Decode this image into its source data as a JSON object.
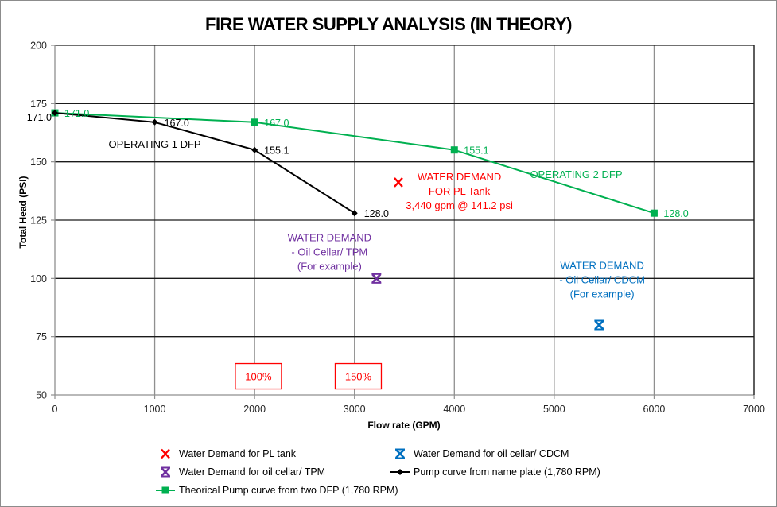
{
  "chart_data": {
    "type": "scatter",
    "title": "FIRE WATER SUPPLY ANALYSIS (IN THEORY)",
    "xlabel": "Flow rate (GPM)",
    "ylabel": "Total Head (PSI)",
    "xlim": [
      0,
      7000
    ],
    "ylim": [
      50,
      200
    ],
    "xticks": [
      0,
      1000,
      2000,
      3000,
      4000,
      5000,
      6000,
      7000
    ],
    "yticks": [
      50,
      75,
      100,
      125,
      150,
      175,
      200
    ],
    "xtick_labels": [
      "0",
      "1000",
      "2000",
      "3000",
      "4000",
      "5000",
      "6000",
      "7000"
    ],
    "ytick_labels": [
      "50",
      "75",
      "100",
      "125",
      "150",
      "175",
      "200"
    ],
    "grid": true,
    "legend_position": "bottom",
    "series": [
      {
        "name": "Water Demand for PL tank",
        "kind": "marker",
        "marker": "x",
        "color": "#ff0000",
        "x": [
          3440
        ],
        "y": [
          141.2
        ]
      },
      {
        "name": "Water Demand for oil cellar/ CDCM",
        "kind": "marker",
        "marker": "star",
        "color": "#0070c0",
        "x": [
          5450
        ],
        "y": [
          80
        ]
      },
      {
        "name": "Water Demand for oil cellar/ TPM",
        "kind": "marker",
        "marker": "star",
        "color": "#7030a0",
        "x": [
          3220
        ],
        "y": [
          100
        ]
      },
      {
        "name": "Pump curve from name plate (1,780 RPM)",
        "kind": "line",
        "marker": "diamond",
        "color": "#000000",
        "x": [
          0,
          1000,
          2000,
          3000
        ],
        "y": [
          171.0,
          167.0,
          155.1,
          128.0
        ],
        "labels": [
          "171.0",
          "167.0",
          "155.1",
          "128.0"
        ]
      },
      {
        "name": "Theorical Pump curve from two DFP (1,780 RPM)",
        "kind": "line",
        "marker": "square",
        "color": "#00b050",
        "x": [
          0,
          2000,
          4000,
          6000
        ],
        "y": [
          171.0,
          167.0,
          155.1,
          128.0
        ],
        "labels": [
          "171.0",
          "167.0",
          "155.1",
          "128.0"
        ]
      }
    ],
    "annotations": [
      {
        "id": "op1",
        "lines": [
          "OPERATING 1 DFP"
        ],
        "color": "#000000",
        "x": 1000,
        "y": 156
      },
      {
        "id": "op2",
        "lines": [
          "OPERATING 2 DFP"
        ],
        "color": "#00b050",
        "x": 5220,
        "y": 143
      },
      {
        "id": "pl",
        "lines": [
          "WATER DEMAND",
          "FOR PL Tank",
          "3,440 gpm @ 141.2 psi"
        ],
        "color": "#ff0000",
        "x": 4050,
        "y": 142
      },
      {
        "id": "tpm",
        "lines": [
          "WATER DEMAND",
          "- Oil Cellar/ TPM",
          "(For example)"
        ],
        "color": "#7030a0",
        "x": 2750,
        "y": 116
      },
      {
        "id": "cdcm",
        "lines": [
          "WATER DEMAND",
          "- Oil Cellar/ CDCM",
          "(For example)"
        ],
        "color": "#0070c0",
        "x": 5480,
        "y": 104
      },
      {
        "id": "pct100",
        "lines": [
          "100%"
        ],
        "color": "#ff0000",
        "x": 2030,
        "y": 58,
        "boxed": true
      },
      {
        "id": "pct150",
        "lines": [
          "150%"
        ],
        "color": "#ff0000",
        "x": 3030,
        "y": 58,
        "boxed": true
      }
    ]
  }
}
